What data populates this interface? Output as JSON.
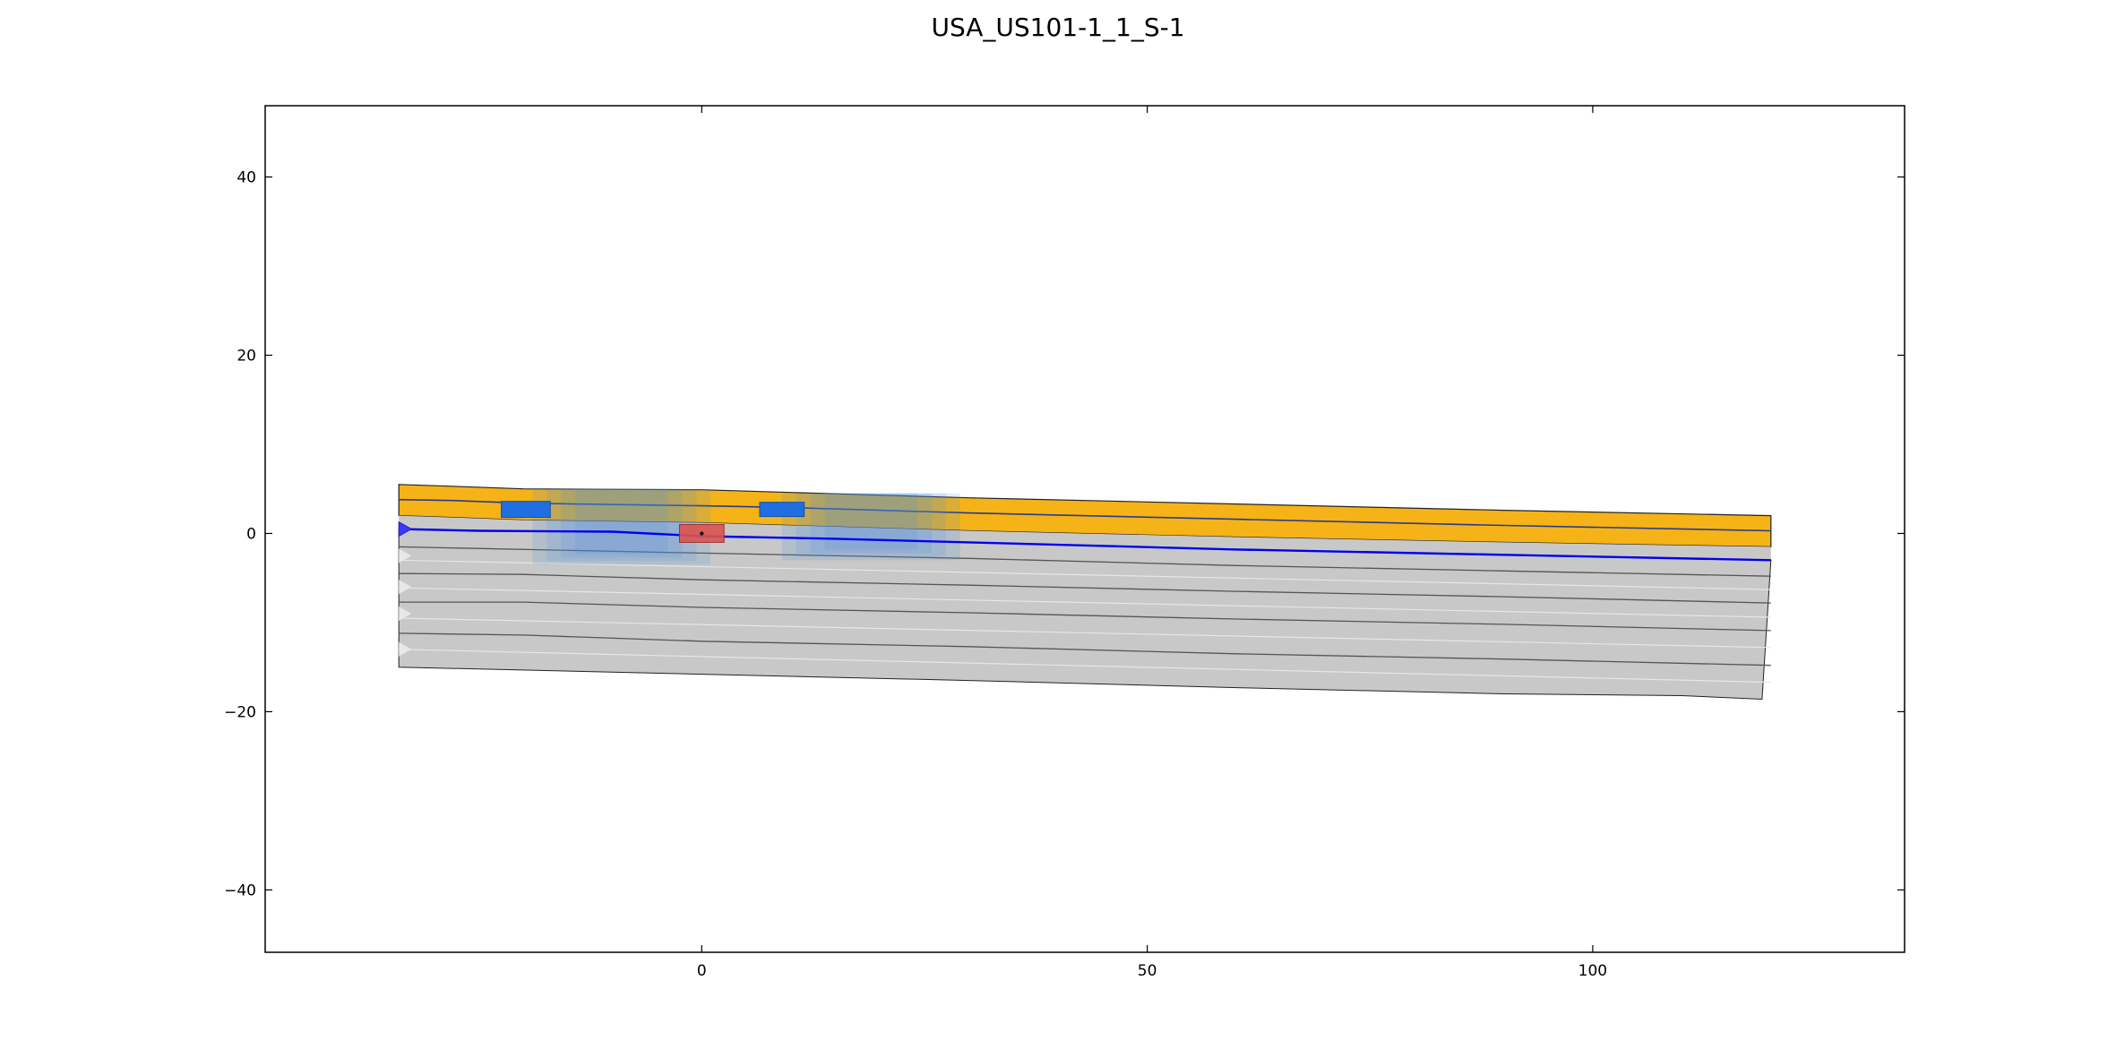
{
  "chart_data": {
    "type": "area",
    "title": "USA_US101-1_1_S-1",
    "xlabel": "",
    "ylabel": "",
    "xlim": [
      -49,
      135
    ],
    "ylim": [
      -47,
      48
    ],
    "x_ticks": [
      0,
      50,
      100
    ],
    "y_ticks": [
      40,
      20,
      0,
      -20,
      -40
    ],
    "x_tick_labels": [
      "0",
      "50",
      "100"
    ],
    "y_tick_labels": [
      "40",
      "20",
      "0",
      "−20",
      "−40"
    ],
    "grid": false,
    "legend": "none",
    "colors": {
      "pavement": "#f5b317",
      "soil": "#c8c8c8",
      "water_line": "#0000ee",
      "foundation": "#1f6fe0",
      "anchor": "#d9534f",
      "outline": "#222222"
    },
    "layers": {
      "pavement": {
        "top": [
          [
            -34,
            5.5
          ],
          [
            -28,
            5.3
          ],
          [
            -20,
            5.0
          ],
          [
            0,
            4.9
          ],
          [
            10,
            4.6
          ],
          [
            20,
            4.3
          ],
          [
            30,
            4.0
          ],
          [
            60,
            3.3
          ],
          [
            90,
            2.6
          ],
          [
            120,
            2.0
          ]
        ],
        "bottom": [
          [
            -34,
            2.0
          ],
          [
            -28,
            1.8
          ],
          [
            -20,
            1.5
          ],
          [
            0,
            1.2
          ],
          [
            10,
            0.9
          ],
          [
            20,
            0.6
          ],
          [
            30,
            0.3
          ],
          [
            60,
            -0.4
          ],
          [
            90,
            -1.0
          ],
          [
            120,
            -1.5
          ]
        ]
      },
      "pavement_mid_line": [
        [
          -34,
          3.8
        ],
        [
          -28,
          3.7
        ],
        [
          -20,
          3.4
        ],
        [
          0,
          3.1
        ],
        [
          10,
          2.9
        ],
        [
          20,
          2.6
        ],
        [
          30,
          2.3
        ],
        [
          60,
          1.6
        ],
        [
          90,
          0.9
        ],
        [
          120,
          0.3
        ]
      ],
      "water_table": [
        [
          -34,
          0.5
        ],
        [
          -25,
          0.3
        ],
        [
          -10,
          0.2
        ],
        [
          0,
          -0.3
        ],
        [
          15,
          -0.6
        ],
        [
          30,
          -1.0
        ],
        [
          60,
          -1.8
        ],
        [
          90,
          -2.4
        ],
        [
          120,
          -3.0
        ]
      ],
      "soil_bottom": [
        [
          -34,
          -15.0
        ],
        [
          0,
          -15.8
        ],
        [
          30,
          -16.5
        ],
        [
          60,
          -17.3
        ],
        [
          90,
          -18.0
        ],
        [
          110,
          -18.2
        ],
        [
          119,
          -18.6
        ]
      ],
      "strata_lines": [
        [
          [
            -34,
            -1.5
          ],
          [
            0,
            -2.2
          ],
          [
            30,
            -2.8
          ],
          [
            60,
            -3.6
          ],
          [
            90,
            -4.2
          ],
          [
            120,
            -4.8
          ]
        ],
        [
          [
            -34,
            -4.5
          ],
          [
            -20,
            -4.6
          ],
          [
            0,
            -5.2
          ],
          [
            30,
            -5.8
          ],
          [
            60,
            -6.5
          ],
          [
            90,
            -7.1
          ],
          [
            120,
            -7.8
          ]
        ],
        [
          [
            -34,
            -7.7
          ],
          [
            -20,
            -7.7
          ],
          [
            0,
            -8.3
          ],
          [
            30,
            -8.9
          ],
          [
            60,
            -9.6
          ],
          [
            90,
            -10.2
          ],
          [
            120,
            -10.9
          ]
        ],
        [
          [
            -34,
            -11.2
          ],
          [
            -20,
            -11.4
          ],
          [
            0,
            -12.1
          ],
          [
            30,
            -12.7
          ],
          [
            60,
            -13.5
          ],
          [
            90,
            -14.1
          ],
          [
            120,
            -14.8
          ]
        ]
      ],
      "faint_strata_lines": [
        [
          [
            -34,
            -3.0
          ],
          [
            120,
            -6.3
          ]
        ],
        [
          [
            -34,
            -6.1
          ],
          [
            120,
            -9.4
          ]
        ],
        [
          [
            -34,
            -9.5
          ],
          [
            120,
            -12.8
          ]
        ],
        [
          [
            -34,
            -13.0
          ],
          [
            120,
            -16.7
          ]
        ]
      ]
    },
    "foundations": [
      {
        "x0": -22.5,
        "x1": -17,
        "y0": 1.8,
        "y1": 3.6
      },
      {
        "x0": 6.5,
        "x1": 11.5,
        "y0": 1.9,
        "y1": 3.5
      }
    ],
    "influence_zones": [
      {
        "x0": -19,
        "x1": 1,
        "y0": -3.5,
        "y1": 5.0
      },
      {
        "x0": 9,
        "x1": 29,
        "y0": -3.0,
        "y1": 4.5
      }
    ],
    "anchor": {
      "x0": -2.5,
      "x1": 2.5,
      "y0": -1.0,
      "y1": 1.0
    },
    "boundary_markers_y": [
      0.5,
      -2.5,
      -6.0,
      -9.0,
      -13.0
    ]
  }
}
